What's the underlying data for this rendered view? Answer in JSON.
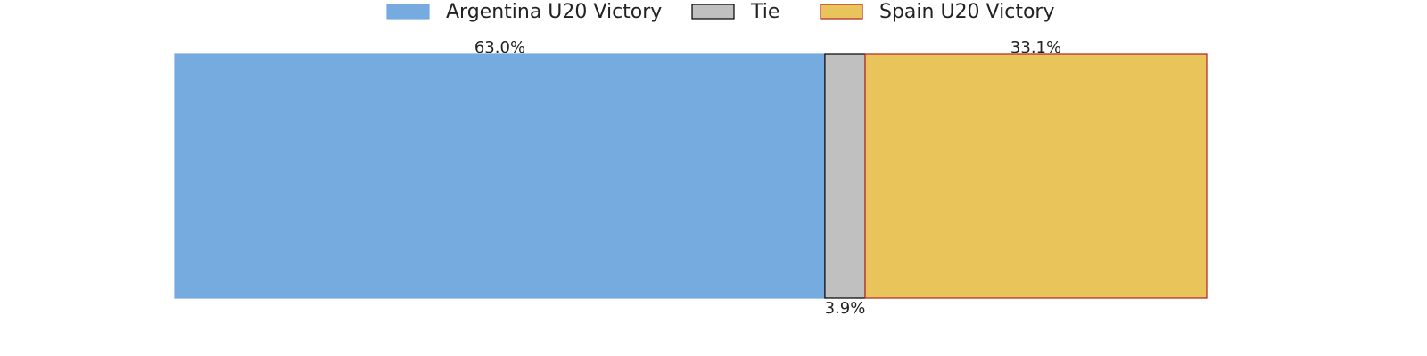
{
  "chart_data": {
    "type": "bar",
    "orientation": "horizontal",
    "stacked": true,
    "xlim": [
      0,
      100
    ],
    "series": [
      {
        "name": "Argentina U20 Victory",
        "color": "#75abdf",
        "edgecolor": "#75abdf",
        "values": [
          63.0
        ],
        "value_labels": [
          "63.0%"
        ]
      },
      {
        "name": "Tie",
        "color": "#c0c0c0",
        "edgecolor": "#000000",
        "values": [
          3.9
        ],
        "value_labels": [
          "3.9%"
        ]
      },
      {
        "name": "Spain U20 Victory",
        "color": "#e8c45a",
        "edgecolor": "#b22222",
        "values": [
          33.1
        ],
        "value_labels": [
          "33.1%"
        ]
      }
    ],
    "legend": "top"
  }
}
